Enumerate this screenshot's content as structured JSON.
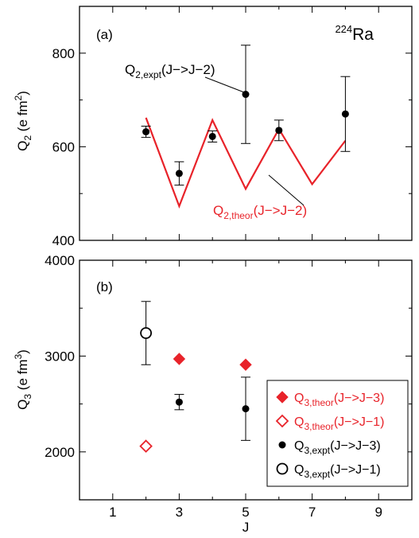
{
  "chart_data": [
    {
      "panel_label": "(a)",
      "type": "line",
      "ylabel": {
        "main": "Q",
        "sub": "2",
        "rest": " (e fm",
        "sup": "2",
        "close": ")"
      },
      "ylim": [
        400,
        900
      ],
      "yticks": [
        400,
        600,
        800
      ],
      "xlim": [
        0,
        10
      ],
      "nucleus": {
        "mass": "224",
        "symbol": "Ra"
      },
      "series": [
        {
          "kind": "expt",
          "label": {
            "main": "Q",
            "sub": "2,expt",
            "rest": "(J−>J−2)"
          },
          "color": "#000000",
          "x": [
            2,
            3,
            4,
            5,
            6,
            8
          ],
          "y": [
            632,
            543,
            622,
            712,
            635,
            670
          ],
          "err": [
            12,
            25,
            12,
            105,
            22,
            80
          ]
        },
        {
          "kind": "theor",
          "label": {
            "main": "Q",
            "sub": "2,theor",
            "rest": "(J−>J−2)"
          },
          "color": "#e8232a",
          "x": [
            2,
            3,
            4,
            5,
            6,
            7,
            8
          ],
          "y": [
            662,
            473,
            657,
            510,
            638,
            520,
            613
          ]
        }
      ]
    },
    {
      "panel_label": "(b)",
      "type": "scatter",
      "xlabel": "J",
      "ylabel": {
        "main": "Q",
        "sub": "3",
        "rest": " (e fm",
        "sup": "3",
        "close": ")"
      },
      "ylim": [
        1500,
        4000
      ],
      "yticks": [
        2000,
        3000,
        4000
      ],
      "xlim": [
        0,
        10
      ],
      "xticks": [
        1,
        3,
        5,
        7,
        9
      ],
      "legend_position": "bottom-right",
      "series": [
        {
          "label": {
            "main": "Q",
            "sub": "3,theor",
            "rest": "(J−>J−3)"
          },
          "marker": "diamond-filled",
          "color": "#e8232a",
          "x": [
            3,
            5
          ],
          "y": [
            2970,
            2910
          ]
        },
        {
          "label": {
            "main": "Q",
            "sub": "3,theor",
            "rest": "(J−>J−1)"
          },
          "marker": "diamond-open",
          "color": "#e8232a",
          "x": [
            2
          ],
          "y": [
            2060
          ]
        },
        {
          "label": {
            "main": "Q",
            "sub": "3,expt",
            "rest": "(J−>J−3)"
          },
          "marker": "circle-filled",
          "color": "#000000",
          "x": [
            3,
            5
          ],
          "y": [
            2520,
            2450
          ],
          "err": [
            80,
            330
          ]
        },
        {
          "label": {
            "main": "Q",
            "sub": "3,expt",
            "rest": "(J−>J−1)"
          },
          "marker": "circle-open",
          "color": "#000000",
          "x": [
            2
          ],
          "y": [
            3240
          ],
          "err": [
            330
          ]
        }
      ]
    }
  ]
}
